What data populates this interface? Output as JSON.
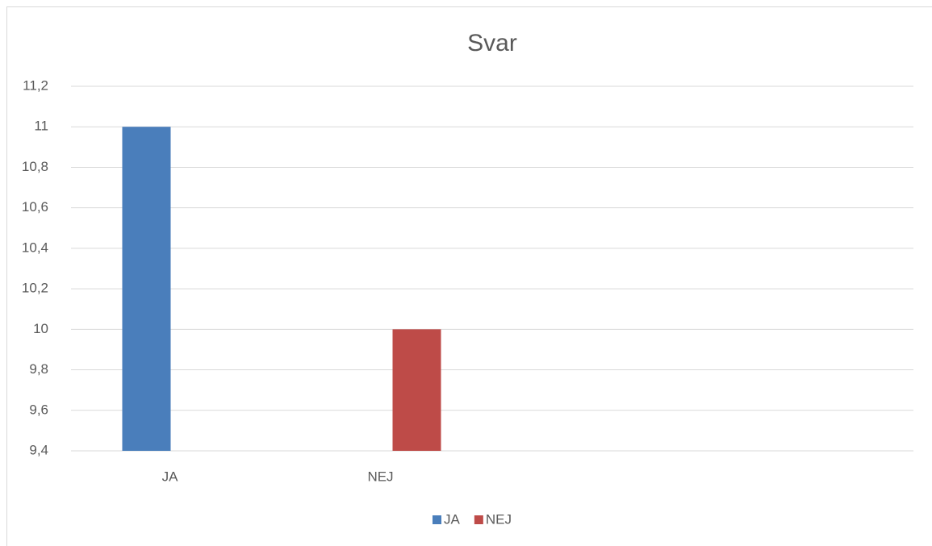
{
  "chart_data": {
    "type": "bar",
    "title": "Svar",
    "categories": [
      "JA",
      "NEJ",
      null,
      null
    ],
    "series": [
      {
        "name": "JA",
        "color": "#4a7ebb",
        "values": [
          11,
          null,
          null,
          null
        ]
      },
      {
        "name": "NEJ",
        "color": "#be4b48",
        "values": [
          null,
          10,
          null,
          null
        ]
      }
    ],
    "ylim": [
      9.4,
      11.2
    ],
    "yticks": [
      {
        "value": 9.4,
        "label": "9,4"
      },
      {
        "value": 9.6,
        "label": "9,6"
      },
      {
        "value": 9.8,
        "label": "9,8"
      },
      10,
      {
        "value": 10.2,
        "label": "10,2"
      },
      {
        "value": 10.4,
        "label": "10,4"
      },
      {
        "value": 10.6,
        "label": "10,6"
      },
      {
        "value": 10.8,
        "label": "10,8"
      },
      11,
      {
        "value": 11.2,
        "label": "11,2"
      }
    ],
    "grid": true,
    "legend": "bottom"
  }
}
